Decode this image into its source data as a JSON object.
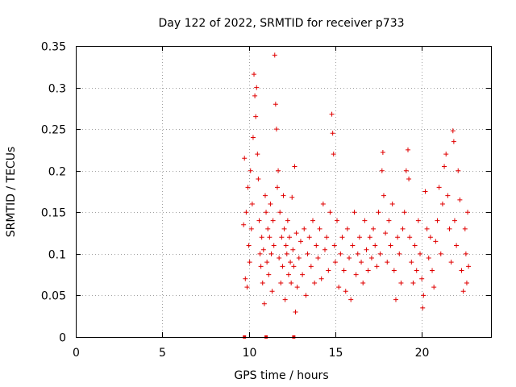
{
  "chart_data": {
    "type": "scatter",
    "title": "Day 122 of 2022, SRMTID for receiver p733",
    "xlabel": "GPS time / hours",
    "ylabel": "SRMTID / TECUs",
    "xlim": [
      0,
      24
    ],
    "ylim": [
      0,
      0.35
    ],
    "xticks": [
      "0",
      "5",
      "10",
      "15",
      "20"
    ],
    "yticks": [
      "0",
      "0.05",
      "0.1",
      "0.15",
      "0.2",
      "0.25",
      "0.3",
      "0.35"
    ],
    "grid": true,
    "marker": "+",
    "color": "#e00000",
    "series": [
      {
        "name": "SRMTID",
        "points": [
          [
            9.7,
            0.135
          ],
          [
            9.75,
            0.215
          ],
          [
            9.8,
            0.07
          ],
          [
            9.85,
            0.15
          ],
          [
            9.9,
            0.06
          ],
          [
            9.95,
            0.18
          ],
          [
            10.0,
            0.11
          ],
          [
            10.05,
            0.09
          ],
          [
            10.1,
            0.2
          ],
          [
            10.15,
            0.13
          ],
          [
            10.2,
            0.16
          ],
          [
            10.25,
            0.24
          ],
          [
            10.3,
            0.316
          ],
          [
            10.35,
            0.29
          ],
          [
            10.4,
            0.265
          ],
          [
            10.45,
            0.3
          ],
          [
            10.5,
            0.22
          ],
          [
            10.55,
            0.19
          ],
          [
            10.6,
            0.14
          ],
          [
            10.65,
            0.1
          ],
          [
            10.7,
            0.085
          ],
          [
            10.75,
            0.12
          ],
          [
            10.8,
            0.065
          ],
          [
            10.85,
            0.105
          ],
          [
            10.9,
            0.04
          ],
          [
            10.95,
            0.17
          ],
          [
            11.0,
            0.15
          ],
          [
            11.05,
            0.09
          ],
          [
            11.1,
            0.13
          ],
          [
            11.15,
            0.075
          ],
          [
            11.2,
            0.12
          ],
          [
            11.25,
            0.16
          ],
          [
            11.3,
            0.1
          ],
          [
            11.35,
            0.055
          ],
          [
            11.4,
            0.14
          ],
          [
            11.45,
            0.11
          ],
          [
            11.5,
            0.339
          ],
          [
            11.55,
            0.28
          ],
          [
            11.6,
            0.25
          ],
          [
            11.65,
            0.18
          ],
          [
            11.7,
            0.2
          ],
          [
            11.75,
            0.095
          ],
          [
            11.8,
            0.15
          ],
          [
            11.85,
            0.065
          ],
          [
            11.9,
            0.12
          ],
          [
            11.95,
            0.085
          ],
          [
            12.0,
            0.17
          ],
          [
            12.05,
            0.13
          ],
          [
            12.1,
            0.045
          ],
          [
            12.15,
            0.11
          ],
          [
            12.2,
            0.1
          ],
          [
            12.25,
            0.14
          ],
          [
            12.3,
            0.075
          ],
          [
            12.35,
            0.12
          ],
          [
            12.4,
            0.09
          ],
          [
            12.45,
            0.065
          ],
          [
            12.5,
            0.168
          ],
          [
            12.55,
            0.105
          ],
          [
            12.6,
            0.085
          ],
          [
            12.65,
            0.205
          ],
          [
            12.7,
            0.03
          ],
          [
            12.75,
            0.125
          ],
          [
            12.8,
            0.06
          ],
          [
            12.9,
            0.095
          ],
          [
            13.0,
            0.115
          ],
          [
            13.1,
            0.075
          ],
          [
            13.2,
            0.13
          ],
          [
            13.3,
            0.05
          ],
          [
            13.4,
            0.1
          ],
          [
            13.5,
            0.12
          ],
          [
            13.6,
            0.085
          ],
          [
            13.7,
            0.14
          ],
          [
            13.8,
            0.065
          ],
          [
            13.9,
            0.11
          ],
          [
            14.0,
            0.095
          ],
          [
            14.1,
            0.13
          ],
          [
            14.2,
            0.07
          ],
          [
            14.3,
            0.16
          ],
          [
            14.4,
            0.105
          ],
          [
            14.5,
            0.12
          ],
          [
            14.6,
            0.08
          ],
          [
            14.7,
            0.15
          ],
          [
            14.8,
            0.268
          ],
          [
            14.85,
            0.245
          ],
          [
            14.9,
            0.22
          ],
          [
            14.95,
            0.11
          ],
          [
            15.0,
            0.09
          ],
          [
            15.1,
            0.14
          ],
          [
            15.2,
            0.06
          ],
          [
            15.3,
            0.1
          ],
          [
            15.4,
            0.12
          ],
          [
            15.5,
            0.08
          ],
          [
            15.6,
            0.055
          ],
          [
            15.7,
            0.13
          ],
          [
            15.8,
            0.095
          ],
          [
            15.9,
            0.045
          ],
          [
            16.0,
            0.11
          ],
          [
            16.1,
            0.15
          ],
          [
            16.2,
            0.075
          ],
          [
            16.3,
            0.1
          ],
          [
            16.4,
            0.12
          ],
          [
            16.5,
            0.09
          ],
          [
            16.6,
            0.065
          ],
          [
            16.7,
            0.14
          ],
          [
            16.8,
            0.105
          ],
          [
            16.9,
            0.08
          ],
          [
            17.0,
            0.12
          ],
          [
            17.1,
            0.095
          ],
          [
            17.2,
            0.13
          ],
          [
            17.3,
            0.11
          ],
          [
            17.4,
            0.085
          ],
          [
            17.5,
            0.15
          ],
          [
            17.6,
            0.1
          ],
          [
            17.7,
            0.2
          ],
          [
            17.75,
            0.222
          ],
          [
            17.8,
            0.17
          ],
          [
            17.9,
            0.125
          ],
          [
            18.0,
            0.09
          ],
          [
            18.1,
            0.14
          ],
          [
            18.2,
            0.11
          ],
          [
            18.3,
            0.16
          ],
          [
            18.4,
            0.08
          ],
          [
            18.5,
            0.045
          ],
          [
            18.6,
            0.12
          ],
          [
            18.7,
            0.1
          ],
          [
            18.8,
            0.065
          ],
          [
            18.9,
            0.13
          ],
          [
            19.0,
            0.15
          ],
          [
            19.1,
            0.2
          ],
          [
            19.2,
            0.225
          ],
          [
            19.25,
            0.19
          ],
          [
            19.3,
            0.12
          ],
          [
            19.4,
            0.09
          ],
          [
            19.5,
            0.065
          ],
          [
            19.6,
            0.11
          ],
          [
            19.7,
            0.08
          ],
          [
            19.8,
            0.14
          ],
          [
            19.9,
            0.1
          ],
          [
            20.0,
            0.07
          ],
          [
            20.05,
            0.035
          ],
          [
            20.1,
            0.05
          ],
          [
            20.2,
            0.175
          ],
          [
            20.3,
            0.13
          ],
          [
            20.4,
            0.095
          ],
          [
            20.5,
            0.12
          ],
          [
            20.6,
            0.08
          ],
          [
            20.7,
            0.06
          ],
          [
            20.8,
            0.115
          ],
          [
            20.9,
            0.14
          ],
          [
            21.0,
            0.18
          ],
          [
            21.1,
            0.1
          ],
          [
            21.2,
            0.16
          ],
          [
            21.3,
            0.205
          ],
          [
            21.4,
            0.22
          ],
          [
            21.5,
            0.17
          ],
          [
            21.6,
            0.13
          ],
          [
            21.7,
            0.09
          ],
          [
            21.8,
            0.248
          ],
          [
            21.85,
            0.235
          ],
          [
            21.9,
            0.14
          ],
          [
            22.0,
            0.11
          ],
          [
            22.1,
            0.2
          ],
          [
            22.2,
            0.165
          ],
          [
            22.3,
            0.08
          ],
          [
            22.4,
            0.055
          ],
          [
            22.5,
            0.13
          ],
          [
            22.55,
            0.1
          ],
          [
            22.6,
            0.065
          ],
          [
            22.65,
            0.15
          ],
          [
            22.7,
            0.085
          ]
        ]
      }
    ],
    "axis_markers": [
      {
        "x": 9.75,
        "y": 0
      },
      {
        "x": 11.0,
        "y": 0
      },
      {
        "x": 12.6,
        "y": 0
      }
    ]
  }
}
